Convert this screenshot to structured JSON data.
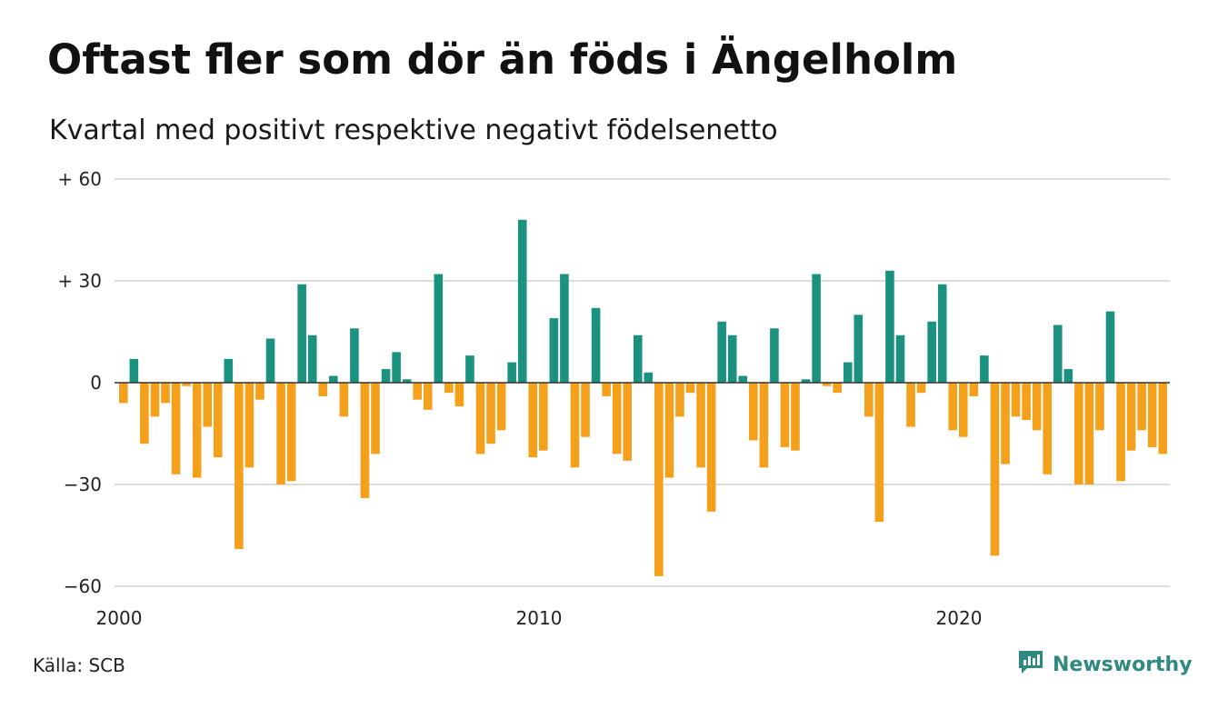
{
  "header": {
    "title": "Oftast fler som dör än föds i Ängelholm",
    "subtitle": "Kvartal med positivt respektive negativt födelsenetto"
  },
  "footer": {
    "source": "Källa: SCB",
    "brand": "Newsworthy",
    "brand_icon": "newsworthy-logo-icon"
  },
  "colors": {
    "positive": "#1b9180",
    "negative": "#f4a01b",
    "brand": "#2e8a7e"
  },
  "chart_data": {
    "type": "bar",
    "x_axis": {
      "start": 2000,
      "quarters_per_year": 4,
      "ticks": [
        2000,
        2010,
        2020
      ],
      "tick_labels": [
        "2000",
        "2010",
        "2020"
      ]
    },
    "y_axis": {
      "ylim": [
        -60,
        60
      ],
      "ticks": [
        -60,
        -30,
        0,
        30,
        60
      ],
      "tick_labels": [
        "−60",
        "−30",
        "0",
        "+ 30",
        "+ 60"
      ]
    },
    "grid": true,
    "values": [
      -6,
      7,
      -18,
      -10,
      -6,
      -27,
      -1,
      -28,
      -13,
      -22,
      7,
      -49,
      -25,
      -5,
      13,
      -30,
      -29,
      29,
      14,
      -4,
      2,
      -10,
      16,
      -34,
      -21,
      4,
      9,
      1,
      -5,
      -8,
      32,
      -3,
      -7,
      8,
      -21,
      -18,
      -14,
      6,
      48,
      -22,
      -20,
      19,
      32,
      -25,
      -16,
      22,
      -4,
      -21,
      -23,
      14,
      3,
      -57,
      -28,
      -10,
      -3,
      -25,
      -38,
      18,
      14,
      2,
      -17,
      -25,
      16,
      -19,
      -20,
      1,
      32,
      -1,
      -3,
      6,
      20,
      -10,
      -41,
      33,
      14,
      -13,
      -3,
      18,
      29,
      -14,
      -16,
      -4,
      8,
      -51,
      -24,
      -10,
      -11,
      -14,
      -27,
      17,
      4,
      -30,
      -30,
      -14,
      21,
      -29,
      -20,
      -14,
      -19,
      -21
    ]
  }
}
